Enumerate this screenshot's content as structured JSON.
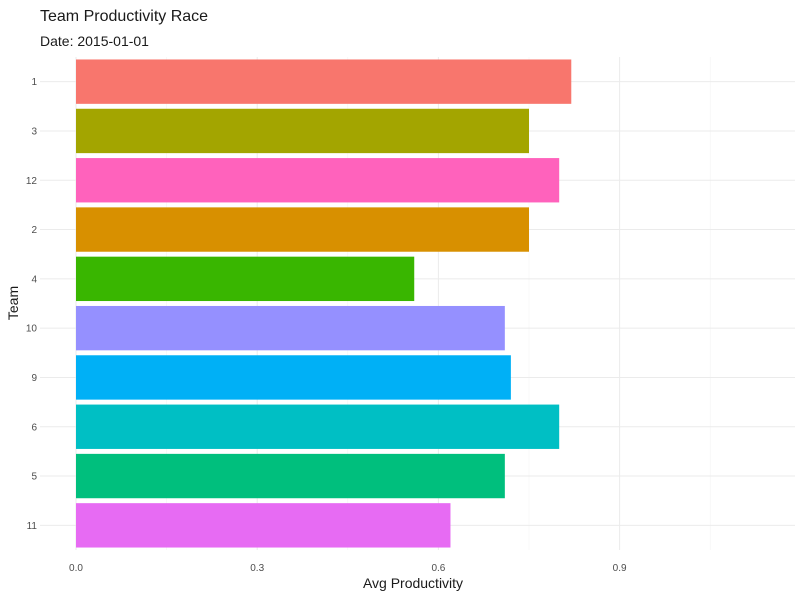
{
  "chart_data": {
    "type": "bar",
    "orientation": "horizontal",
    "title": "Team Productivity Race",
    "subtitle": "Date: 2015-01-01",
    "xlabel": "Avg Productivity",
    "ylabel": "Team",
    "xlim": [
      0,
      1.1
    ],
    "x_ticks": [
      {
        "value": 0.0,
        "label": "0.0"
      },
      {
        "value": 0.3,
        "label": "0.3"
      },
      {
        "value": 0.6,
        "label": "0.6"
      },
      {
        "value": 0.9,
        "label": "0.9"
      }
    ],
    "grid": true,
    "legend": "none",
    "bars": [
      {
        "category": "1",
        "value": 0.82,
        "color": "#F8766D"
      },
      {
        "category": "3",
        "value": 0.75,
        "color": "#A3A500"
      },
      {
        "category": "12",
        "value": 0.8,
        "color": "#FF62BC"
      },
      {
        "category": "2",
        "value": 0.75,
        "color": "#D89000"
      },
      {
        "category": "4",
        "value": 0.56,
        "color": "#39B600"
      },
      {
        "category": "10",
        "value": 0.71,
        "color": "#9590FF"
      },
      {
        "category": "9",
        "value": 0.72,
        "color": "#00B0F6"
      },
      {
        "category": "6",
        "value": 0.8,
        "color": "#00BFC4"
      },
      {
        "category": "5",
        "value": 0.71,
        "color": "#00BF7D"
      },
      {
        "category": "11",
        "value": 0.62,
        "color": "#E76BF3"
      }
    ]
  }
}
